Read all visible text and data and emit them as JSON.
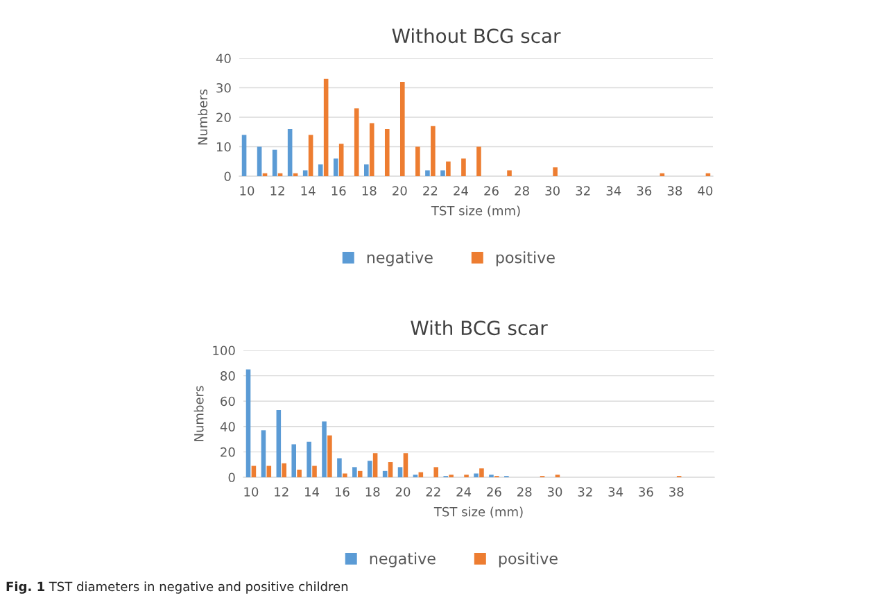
{
  "chart_data": [
    {
      "type": "bar",
      "title": "Without BCG scar",
      "xlabel": "TST size (mm)",
      "ylabel": "Numbers",
      "categories": [
        "10",
        null,
        "12",
        null,
        "14",
        null,
        "16",
        null,
        "18",
        null,
        "20",
        null,
        "22",
        null,
        "24",
        null,
        "26",
        null,
        "28",
        null,
        "30",
        null,
        "32",
        null,
        "34",
        null,
        "36",
        null,
        "38",
        null,
        "40"
      ],
      "series": [
        {
          "name": "negative",
          "color": "#5b9bd5",
          "values": [
            14,
            10,
            9,
            16,
            2,
            4,
            6,
            0,
            4,
            0,
            0,
            0,
            2,
            2,
            0,
            0,
            0,
            0,
            0,
            0,
            0,
            0,
            0,
            0,
            0,
            0,
            0,
            0,
            0,
            0,
            0
          ]
        },
        {
          "name": "positive",
          "color": "#ed7d31",
          "values": [
            0,
            1,
            1,
            1,
            14,
            33,
            11,
            23,
            18,
            16,
            32,
            10,
            17,
            5,
            6,
            10,
            0,
            2,
            0,
            0,
            3,
            0,
            0,
            0,
            0,
            0,
            0,
            1,
            0,
            0,
            1
          ]
        }
      ],
      "ylim": [
        0,
        40
      ],
      "yticks": [
        0,
        10,
        20,
        30,
        40
      ],
      "grid": "y",
      "legend": "bottom"
    },
    {
      "type": "bar",
      "title": "With BCG scar",
      "xlabel": "TST size (mm)",
      "ylabel": "Numbers",
      "categories": [
        "10",
        null,
        "12",
        null,
        "14",
        null,
        "16",
        null,
        "18",
        null,
        "20",
        null,
        "22",
        null,
        "24",
        null,
        "26",
        null,
        "28",
        null,
        "30",
        null,
        "32",
        null,
        "34",
        null,
        "36",
        null,
        "38",
        null,
        null
      ],
      "series": [
        {
          "name": "negative",
          "color": "#5b9bd5",
          "values": [
            85,
            37,
            53,
            26,
            28,
            44,
            15,
            8,
            13,
            5,
            8,
            2,
            0,
            1,
            0,
            3,
            2,
            1,
            0,
            0,
            0,
            0,
            0,
            0,
            0,
            0,
            0,
            0,
            0,
            0,
            0
          ]
        },
        {
          "name": "positive",
          "color": "#ed7d31",
          "values": [
            9,
            9,
            11,
            6,
            9,
            33,
            3,
            5,
            19,
            12,
            19,
            4,
            8,
            2,
            2,
            7,
            1,
            0,
            0,
            1,
            2,
            0,
            0,
            0,
            0,
            0,
            0,
            0,
            1,
            0,
            0
          ]
        }
      ],
      "ylim": [
        0,
        100
      ],
      "yticks": [
        0,
        20,
        40,
        60,
        80,
        100
      ],
      "grid": "y",
      "legend": "bottom",
      "annotations": [
        "Fig. 1",
        "TST diameters in negative and positive children"
      ]
    }
  ]
}
